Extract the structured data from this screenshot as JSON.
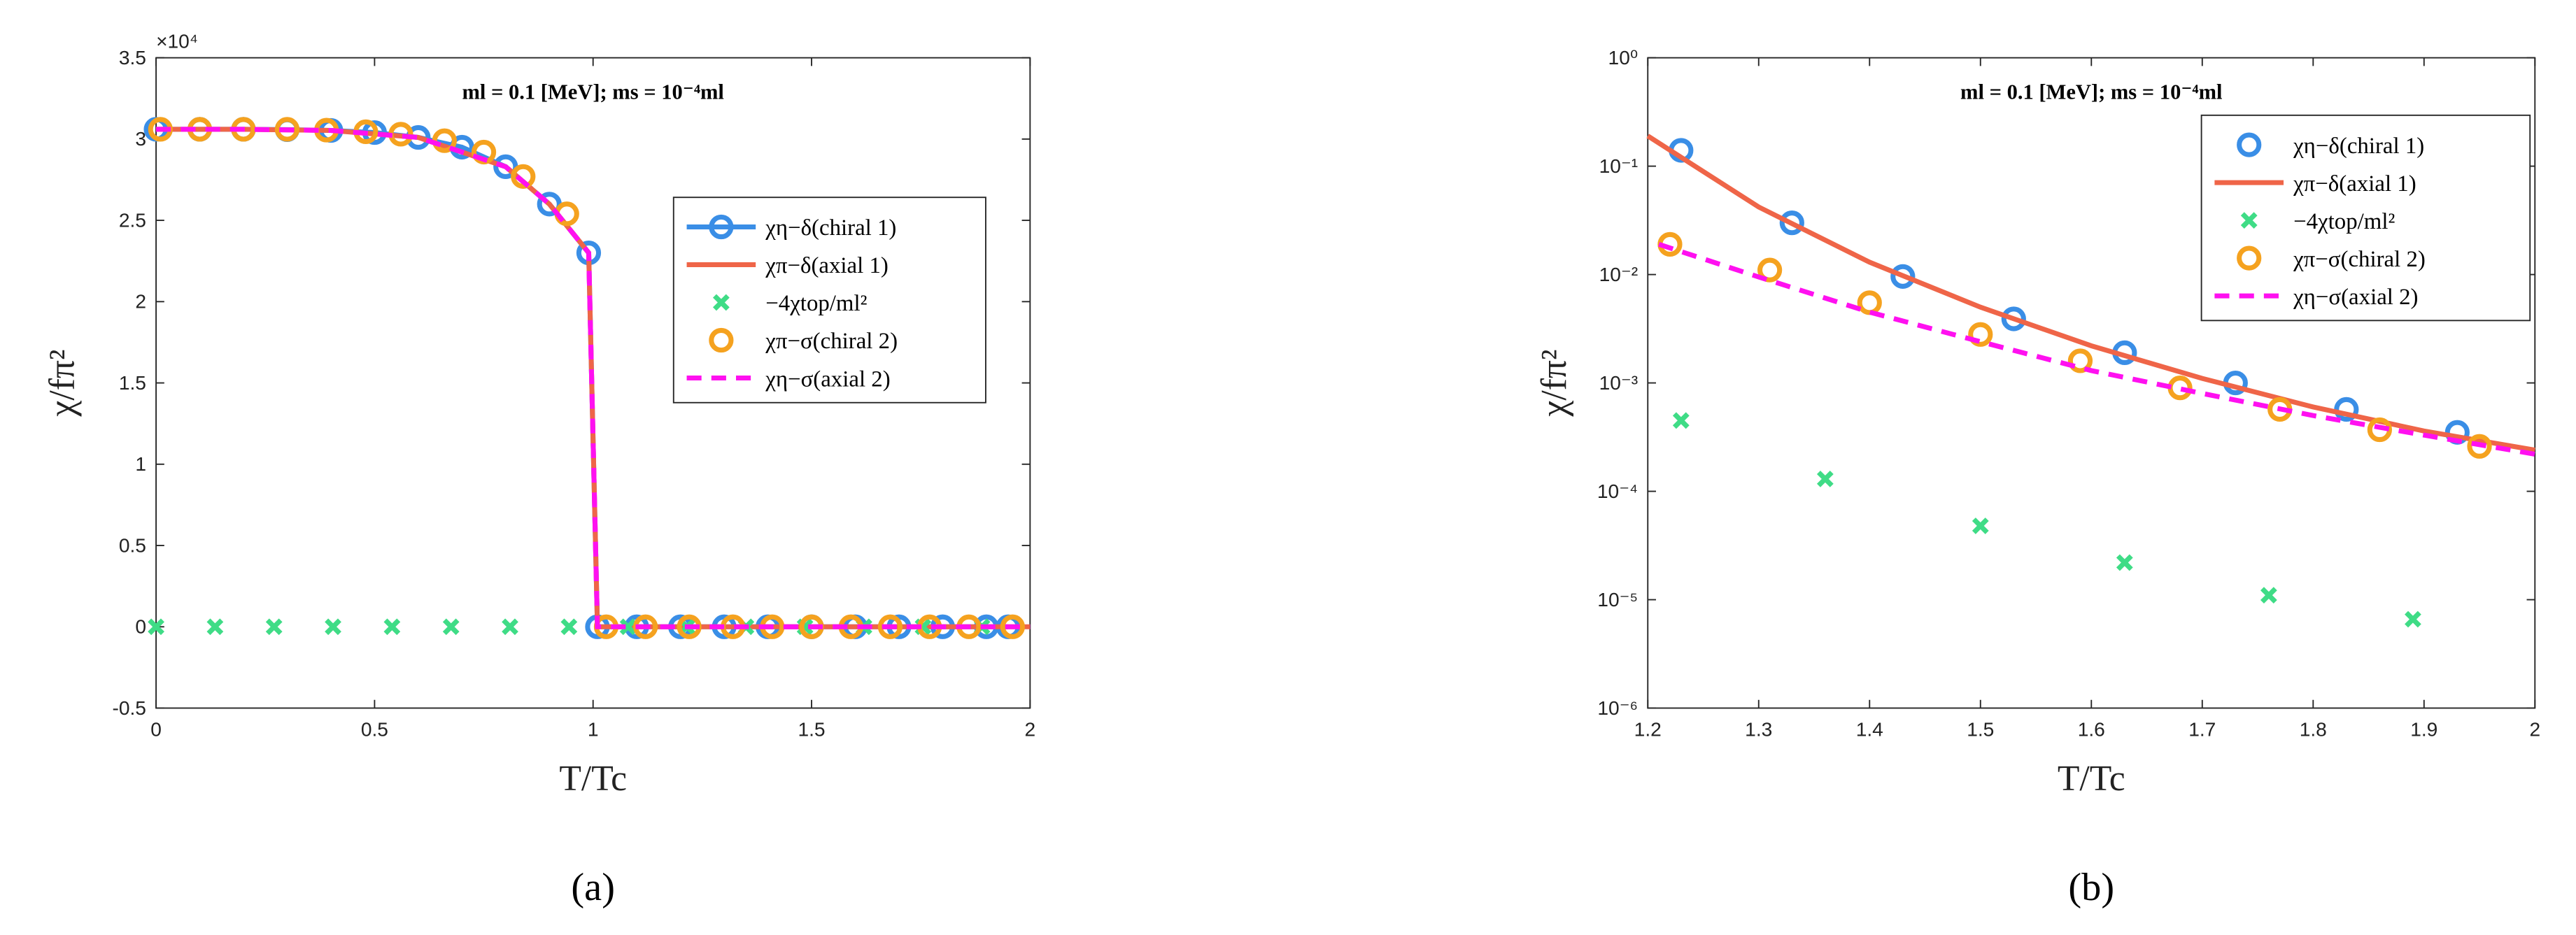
{
  "chart_data": [
    {
      "type": "line",
      "title": "ml = 0.1 [MeV]; ms = 10⁻⁴ml",
      "caption": "(a)",
      "x_label": "T/Tc",
      "y_label": "χ/fπ²",
      "y_multiplier": "×10⁴",
      "xlim": [
        0,
        2
      ],
      "xticks": [
        0,
        0.5,
        1,
        1.5,
        2
      ],
      "ylim": [
        -5000,
        35000
      ],
      "yticks": [
        {
          "value": -5000,
          "label": "-0.5"
        },
        0,
        {
          "value": 5000,
          "label": "0.5"
        },
        {
          "value": 10000,
          "label": "1"
        },
        {
          "value": 15000,
          "label": "1.5"
        },
        {
          "value": 20000,
          "label": "2"
        },
        {
          "value": 25000,
          "label": "2.5"
        },
        {
          "value": 30000,
          "label": "3"
        },
        {
          "value": 35000,
          "label": "3.5"
        }
      ],
      "log_y": false,
      "legend": "right",
      "series": [
        {
          "name": "χη−δ(chiral 1)",
          "color": "#3a8ee6",
          "style": "line-circle",
          "x": [
            0,
            0.1,
            0.2,
            0.3,
            0.4,
            0.5,
            0.6,
            0.7,
            0.8,
            0.9,
            0.99,
            1.01,
            1.1,
            1.2,
            1.3,
            1.4,
            1.5,
            1.6,
            1.7,
            1.8,
            1.9,
            1.95
          ],
          "values": [
            30600,
            30600,
            30600,
            30580,
            30530,
            30400,
            30100,
            29500,
            28300,
            26000,
            23000,
            0,
            0,
            0,
            0,
            0,
            0,
            0,
            0,
            0,
            0,
            0
          ]
        },
        {
          "name": "χπ−δ(axial 1)",
          "color": "#ef6548",
          "style": "line",
          "x": [
            0,
            0.2,
            0.4,
            0.6,
            0.8,
            0.9,
            0.99,
            1.01,
            1.5,
            2
          ],
          "values": [
            30600,
            30600,
            30530,
            30100,
            28300,
            26000,
            23000,
            0,
            0,
            0
          ]
        },
        {
          "name": "−4χtop/ml²",
          "color": "#3fdc86",
          "style": "cross",
          "x": [
            0,
            0.135,
            0.27,
            0.405,
            0.54,
            0.675,
            0.81,
            0.945,
            1.08,
            1.215,
            1.35,
            1.485,
            1.62,
            1.755,
            1.89
          ],
          "values": [
            0,
            0,
            0,
            0,
            0,
            0,
            0,
            0,
            0,
            0,
            0,
            0,
            0,
            0,
            0
          ]
        },
        {
          "name": "χπ−σ(chiral 2)",
          "color": "#f5a21f",
          "style": "circle",
          "x": [
            0.01,
            0.1,
            0.2,
            0.3,
            0.39,
            0.48,
            0.56,
            0.66,
            0.75,
            0.84,
            0.94,
            1.03,
            1.12,
            1.22,
            1.32,
            1.41,
            1.5,
            1.59,
            1.68,
            1.77,
            1.86,
            1.96
          ],
          "values": [
            30600,
            30600,
            30600,
            30600,
            30550,
            30450,
            30300,
            29900,
            29200,
            27700,
            25400,
            0,
            0,
            0,
            0,
            0,
            0,
            0,
            0,
            0,
            0,
            0
          ]
        },
        {
          "name": "χη−σ(axial 2)",
          "color": "#ff10f0",
          "style": "dashed",
          "x": [
            0,
            0.2,
            0.4,
            0.6,
            0.8,
            0.9,
            0.99,
            1.01,
            1.5,
            2
          ],
          "values": [
            30600,
            30600,
            30530,
            30100,
            28300,
            26000,
            23000,
            0,
            0,
            0
          ]
        }
      ]
    },
    {
      "type": "line",
      "title": "ml = 0.1 [MeV]; ms = 10⁻⁴ml",
      "caption": "(b)",
      "x_label": "T/Tc",
      "y_label": "χ/fπ²",
      "xlim": [
        1.2,
        2
      ],
      "xticks": [
        1.2,
        1.3,
        1.4,
        1.5,
        1.6,
        1.7,
        1.8,
        1.9,
        2
      ],
      "ylim": [
        1e-06,
        1
      ],
      "yticks": [
        {
          "value": 1e-06,
          "label": "10⁻⁶"
        },
        {
          "value": 1e-05,
          "label": "10⁻⁵"
        },
        {
          "value": 0.0001,
          "label": "10⁻⁴"
        },
        {
          "value": 0.001,
          "label": "10⁻³"
        },
        {
          "value": 0.01,
          "label": "10⁻²"
        },
        {
          "value": 0.1,
          "label": "10⁻¹"
        },
        {
          "value": 1,
          "label": "10⁰"
        }
      ],
      "log_y": true,
      "legend": "upper right",
      "series": [
        {
          "name": "χη−δ(chiral 1)",
          "color": "#3a8ee6",
          "style": "circle",
          "x": [
            1.23,
            1.33,
            1.43,
            1.53,
            1.63,
            1.73,
            1.83,
            1.93
          ],
          "values": [
            0.14,
            0.03,
            0.0096,
            0.0039,
            0.0019,
            0.001,
            0.00057,
            0.00035
          ]
        },
        {
          "name": "χπ−δ(axial 1)",
          "color": "#ef6548",
          "style": "line",
          "x": [
            1.2,
            1.3,
            1.4,
            1.5,
            1.6,
            1.7,
            1.8,
            1.9,
            2
          ],
          "values": [
            0.19,
            0.042,
            0.013,
            0.005,
            0.0022,
            0.0011,
            0.0006,
            0.00036,
            0.00024
          ]
        },
        {
          "name": "−4χtop/ml²",
          "color": "#3fdc86",
          "style": "cross",
          "x": [
            1.23,
            1.36,
            1.5,
            1.63,
            1.76,
            1.89
          ],
          "values": [
            0.00045,
            0.00013,
            4.8e-05,
            2.2e-05,
            1.1e-05,
            6.6e-06
          ]
        },
        {
          "name": "χπ−σ(chiral 2)",
          "color": "#f5a21f",
          "style": "circle",
          "x": [
            1.22,
            1.31,
            1.4,
            1.5,
            1.59,
            1.68,
            1.77,
            1.86,
            1.95
          ],
          "values": [
            0.019,
            0.011,
            0.0055,
            0.0028,
            0.0016,
            0.0009,
            0.00057,
            0.00037,
            0.00026
          ]
        },
        {
          "name": "χη−σ(axial 2)",
          "color": "#ff10f0",
          "style": "dashed",
          "x": [
            1.21,
            1.3,
            1.4,
            1.5,
            1.6,
            1.7,
            1.8,
            1.9,
            2
          ],
          "values": [
            0.019,
            0.0095,
            0.0045,
            0.0024,
            0.0013,
            0.0008,
            0.0005,
            0.00033,
            0.00022
          ]
        }
      ]
    }
  ]
}
